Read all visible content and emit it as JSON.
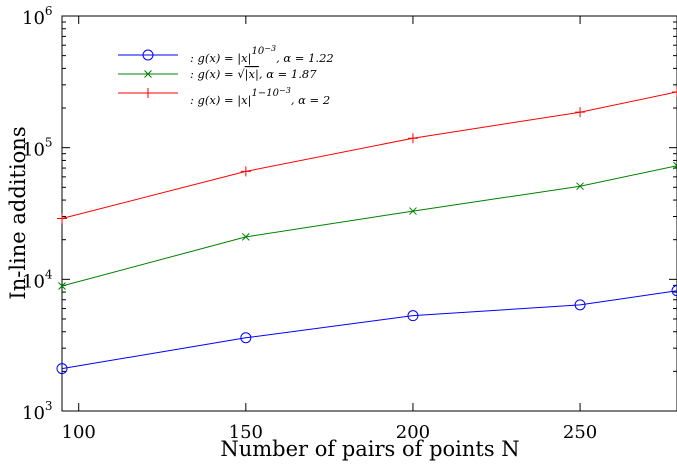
{
  "chart_data": {
    "type": "line",
    "title": "",
    "xlabel": "Number of pairs of points N",
    "ylabel": "In-line additions",
    "xlim": [
      95,
      279
    ],
    "ylim": [
      1000,
      1000000
    ],
    "yscale": "log",
    "grid": false,
    "legend_position": "top-left",
    "x_ticks": [
      100,
      150,
      200,
      250
    ],
    "x_tick_labels": [
      "100",
      "150",
      "200",
      "250"
    ],
    "y_ticks": [
      1000,
      10000,
      100000,
      1000000
    ],
    "y_tick_labels": [
      {
        "base": "10",
        "exp": "3"
      },
      {
        "base": "10",
        "exp": "4"
      },
      {
        "base": "10",
        "exp": "5"
      },
      {
        "base": "10",
        "exp": "6"
      }
    ],
    "x": [
      95,
      150,
      200,
      250,
      279
    ],
    "series": [
      {
        "name": ": g(x) = |x|^(10^-3), α = 1.22",
        "color": "#0000ff",
        "marker": "circle",
        "values": [
          2100,
          3600,
          5300,
          6400,
          8200
        ]
      },
      {
        "name": ": g(x) = √|x|, α = 1.87",
        "color": "#008000",
        "marker": "x",
        "values": [
          8900,
          21000,
          33000,
          51000,
          73000
        ]
      },
      {
        "name": ": g(x) = |x|^(1-10^-3), α = 2",
        "color": "#ff0000",
        "marker": "plus",
        "values": [
          29000,
          66000,
          118000,
          186000,
          265000
        ]
      }
    ]
  },
  "legend": {
    "entries": [
      {
        "prefix": ": g(x) = |x|",
        "sup": "10",
        "supsup": "−3",
        "suffix": ", α = 1.22"
      },
      {
        "prefix": ": g(x) = ",
        "sqrt": "|x|",
        "suffix": ", α = 1.87"
      },
      {
        "prefix": ": g(x) = |x|",
        "sup": "1−10",
        "supsup": "−3",
        "suffix": ", α = 2"
      }
    ]
  }
}
